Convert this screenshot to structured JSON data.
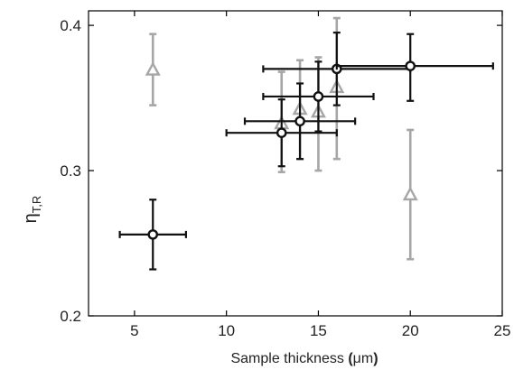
{
  "chart_data": {
    "type": "scatter",
    "title": "",
    "xlabel": "Sample thickness (μm)",
    "xlabel_parts": {
      "main": "Sample thickness ",
      "open": "(",
      "unit": "μm",
      "close": ")"
    },
    "ylabel": {
      "symbol": "η",
      "subscript": "T,R"
    },
    "xlim": [
      2.5,
      25
    ],
    "ylim": [
      0.2,
      0.41
    ],
    "x_ticks": [
      5,
      10,
      15,
      20,
      25
    ],
    "y_ticks": [
      0.2,
      0.3,
      0.4
    ],
    "x_tick_labels": [
      "5",
      "10",
      "15",
      "20",
      "25"
    ],
    "y_tick_labels": [
      "0.2",
      "0.3",
      "0.4"
    ],
    "grid": false,
    "legend": "none",
    "series": [
      {
        "marker": "circle",
        "color": "#111111",
        "points": [
          {
            "x": 6,
            "y": 0.256,
            "xerr": [
              4.2,
              7.8
            ],
            "yerr": [
              0.232,
              0.28
            ]
          },
          {
            "x": 13,
            "y": 0.326,
            "xerr": [
              10.0,
              16.0
            ],
            "yerr": [
              0.303,
              0.349
            ]
          },
          {
            "x": 14,
            "y": 0.334,
            "xerr": [
              11.0,
              17.0
            ],
            "yerr": [
              0.308,
              0.36
            ]
          },
          {
            "x": 15,
            "y": 0.351,
            "xerr": [
              12.0,
              18.0
            ],
            "yerr": [
              0.327,
              0.375
            ]
          },
          {
            "x": 16,
            "y": 0.37,
            "xerr": [
              12.0,
              20.0
            ],
            "yerr": [
              0.345,
              0.395
            ]
          },
          {
            "x": 20,
            "y": 0.372,
            "xerr": [
              16.0,
              24.5
            ],
            "yerr": [
              0.348,
              0.394
            ]
          }
        ]
      },
      {
        "marker": "triangle",
        "color": "#a6a6a6",
        "points": [
          {
            "x": 6,
            "y": 0.369,
            "yerr": [
              0.345,
              0.394
            ]
          },
          {
            "x": 13,
            "y": 0.332,
            "yerr": [
              0.299,
              0.368
            ]
          },
          {
            "x": 14,
            "y": 0.342,
            "yerr": [
              0.308,
              0.376
            ]
          },
          {
            "x": 15,
            "y": 0.34,
            "yerr": [
              0.3,
              0.378
            ]
          },
          {
            "x": 16,
            "y": 0.357,
            "yerr": [
              0.308,
              0.405
            ]
          },
          {
            "x": 20,
            "y": 0.283,
            "yerr": [
              0.239,
              0.328
            ]
          }
        ]
      }
    ]
  }
}
